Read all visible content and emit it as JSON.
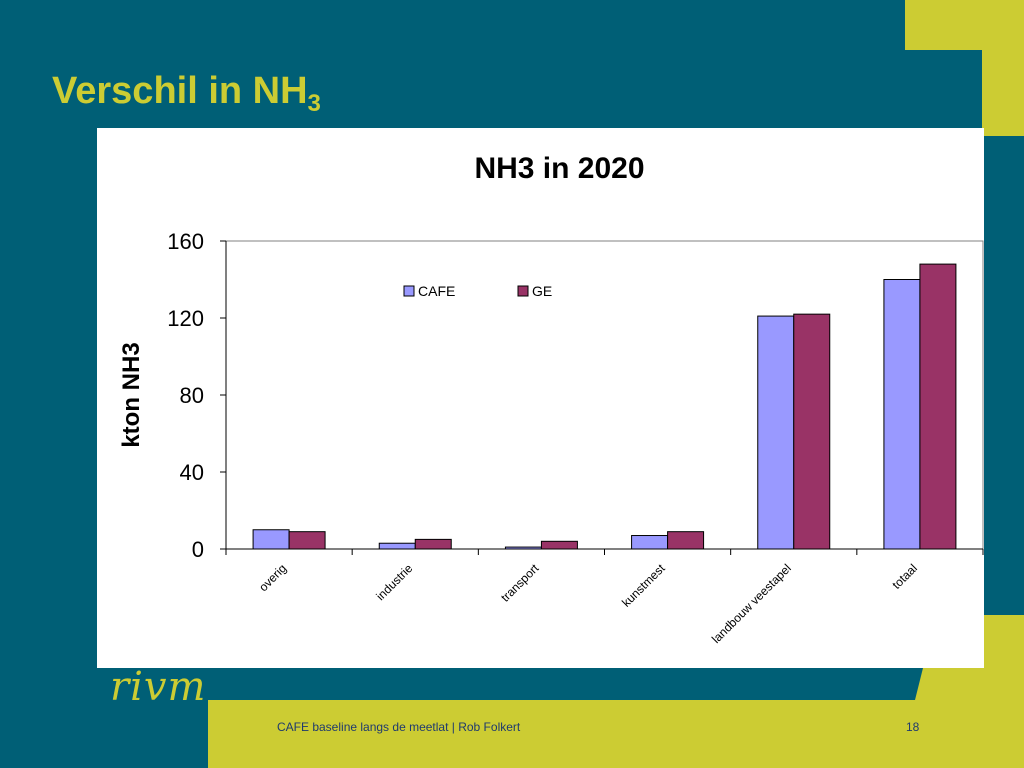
{
  "slide": {
    "title_main": "Verschil in NH",
    "title_sub": "3",
    "logo": "rivm",
    "footer": "CAFE baseline langs de meetlat | Rob Folkert",
    "page": "18"
  },
  "colors": {
    "background": "#005f76",
    "accent": "#cccc33",
    "cafe": "#9999ff",
    "ge": "#993366"
  },
  "chart_data": {
    "type": "bar",
    "title": "NH3 in 2020",
    "ylabel": "kton NH3",
    "xlabel": "",
    "ylim": [
      0,
      160
    ],
    "yticks": [
      0,
      40,
      80,
      120,
      160
    ],
    "categories": [
      "overig",
      "industrie",
      "transport",
      "kunstmest",
      "landbouw veestapel",
      "totaal"
    ],
    "series": [
      {
        "name": "CAFE",
        "color": "#9999ff",
        "values": [
          10,
          3,
          1,
          7,
          121,
          140
        ]
      },
      {
        "name": "GE",
        "color": "#993366",
        "values": [
          9,
          5,
          4,
          9,
          122,
          148
        ]
      }
    ],
    "legend": "top-center",
    "grid": false
  }
}
